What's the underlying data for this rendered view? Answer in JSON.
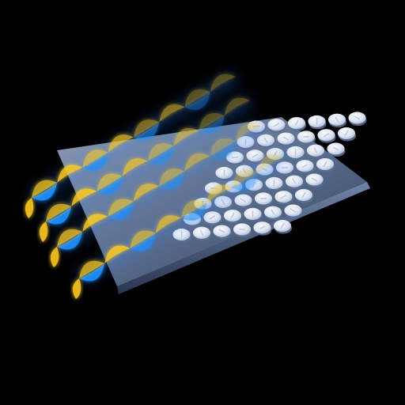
{
  "scene": {
    "background_color": "#000000",
    "substrate_color": "#7f93b5",
    "pillar_color": "#dde4f1",
    "wave_colors": {
      "yellow": "#ffcc22",
      "blue": "#1f8fff"
    },
    "array": {
      "rows": 8,
      "columns": 6
    },
    "beam_count": 4,
    "wave_cycles_per_beam": 4
  }
}
